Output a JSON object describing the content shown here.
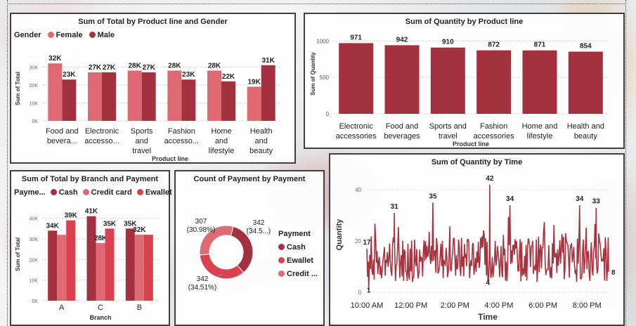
{
  "colors": {
    "female": "#e06a74",
    "male": "#a3313f",
    "quantity_bar": "#a3313f",
    "cash": "#a3313f",
    "credit_card": "#e06a74",
    "ewallet": "#d9434f",
    "line": "#a8323e"
  },
  "panel_total_gender": {
    "title": "Sum of Total by Product line and Gender",
    "legend_title": "Gender",
    "legend": [
      "Female",
      "Male"
    ],
    "xlabel": "Product line",
    "ylabel": "Sum of Total"
  },
  "panel_quantity_product": {
    "title": "Sum of Quantity by Product line",
    "xlabel": "Product line",
    "ylabel": "Sum of Quantity"
  },
  "panel_total_branch": {
    "title": "Sum of Total by Branch and Payment",
    "legend_title": "Payme...",
    "legend": [
      "Cash",
      "Credit card",
      "Ewallet"
    ],
    "xlabel": "Branch",
    "ylabel": "Sum of Total"
  },
  "panel_payment_count": {
    "title": "Count of Payment by Payment",
    "legend_title": "Payment",
    "legend": [
      "Cash",
      "Ewallet",
      "Credit ..."
    ]
  },
  "panel_quantity_time": {
    "title": "Sum of Quantity by Time",
    "xlabel": "Time",
    "ylabel": "Quantity"
  },
  "chart_data": [
    {
      "type": "bar",
      "title": "Sum of Total by Product line and Gender",
      "categories": [
        [
          "Food and",
          "bevera..."
        ],
        [
          "Electronic",
          "accesso..."
        ],
        [
          "Sports",
          "and",
          "travel"
        ],
        [
          "Fashion",
          "accesso..."
        ],
        [
          "Home",
          "and",
          "lifestyle"
        ],
        [
          "Health",
          "and",
          "beauty"
        ]
      ],
      "series": [
        {
          "name": "Female",
          "values": [
            32,
            27,
            28,
            28,
            28,
            19
          ],
          "labels": [
            "32K",
            "27K",
            "28K",
            "28K",
            "28K",
            "19K"
          ]
        },
        {
          "name": "Male",
          "values": [
            23,
            27,
            27,
            23,
            22,
            31
          ],
          "labels": [
            "23K",
            "27K",
            "27K",
            "23K",
            "22K",
            "31K"
          ]
        }
      ],
      "yticks": [
        "0K",
        "10K",
        "20K",
        "30K"
      ],
      "ylim": [
        0,
        36
      ],
      "xlabel": "Product line",
      "ylabel": "Sum of Total"
    },
    {
      "type": "bar",
      "title": "Sum of Quantity by Product line",
      "categories": [
        [
          "Electronic",
          "accessories"
        ],
        [
          "Food and",
          "beverages"
        ],
        [
          "Sports and",
          "travel"
        ],
        [
          "Fashion",
          "accessories"
        ],
        [
          "Home and",
          "lifestyle"
        ],
        [
          "Health and",
          "beauty"
        ]
      ],
      "values": [
        971,
        942,
        910,
        872,
        871,
        854
      ],
      "yticks": [
        "0",
        "500",
        "1000"
      ],
      "ylim": [
        0,
        1100
      ],
      "xlabel": "Product line",
      "ylabel": "Sum of Quantity"
    },
    {
      "type": "bar",
      "title": "Sum of Total by Branch and Payment",
      "categories": [
        "A",
        "C",
        "B"
      ],
      "series": [
        {
          "name": "Cash",
          "values": [
            34,
            41,
            35
          ],
          "labels": [
            "34K",
            "41K",
            "35K"
          ]
        },
        {
          "name": "Credit card",
          "values": [
            32,
            28,
            32
          ],
          "labels": [
            "",
            "28K",
            "32K"
          ]
        },
        {
          "name": "Ewallet",
          "values": [
            39,
            35,
            32
          ],
          "labels": [
            "39K",
            "35K",
            ""
          ]
        }
      ],
      "yticks": [
        "0K",
        "10K",
        "20K",
        "30K",
        "40K"
      ],
      "ylim": [
        0,
        45
      ],
      "xlabel": "Branch",
      "ylabel": "Sum of Total"
    },
    {
      "type": "pie",
      "title": "Count of Payment by Payment",
      "slices": [
        {
          "name": "Cash",
          "value": 342,
          "label": "342 (34.5...)"
        },
        {
          "name": "Ewallet",
          "value": 342,
          "label": "342 (34.51%)"
        },
        {
          "name": "Credit ...",
          "value": 307,
          "label": "307 (30.98%)"
        }
      ]
    },
    {
      "type": "line",
      "title": "Sum of Quantity by Time",
      "x_range": [
        "10:00 AM",
        "8:59 PM"
      ],
      "xticks": [
        "10:00 AM",
        "12:00 PM",
        "2:00 PM",
        "4:00 PM",
        "6:00 PM",
        "8:00 PM"
      ],
      "yticks": [
        "0",
        "20",
        "40"
      ],
      "ylim": [
        0,
        45
      ],
      "xlabel": "Time",
      "ylabel": "Quantity",
      "annotations": [
        {
          "time": "10:00 AM",
          "value": 17,
          "label": "17"
        },
        {
          "time": "10:05 AM",
          "value": 1,
          "label": "1"
        },
        {
          "time": "11:15 AM",
          "value": 31,
          "label": "31"
        },
        {
          "time": "1:00 PM",
          "value": 35,
          "label": "35"
        },
        {
          "time": "3:35 PM",
          "value": 42,
          "label": "42"
        },
        {
          "time": "3:30 PM",
          "value": 4,
          "label": "4"
        },
        {
          "time": "4:30 PM",
          "value": 34,
          "label": "34"
        },
        {
          "time": "7:40 PM",
          "value": 34,
          "label": "34"
        },
        {
          "time": "8:25 PM",
          "value": 33,
          "label": "33"
        },
        {
          "time": "8:59 PM",
          "value": 8,
          "label": "8"
        }
      ]
    }
  ]
}
